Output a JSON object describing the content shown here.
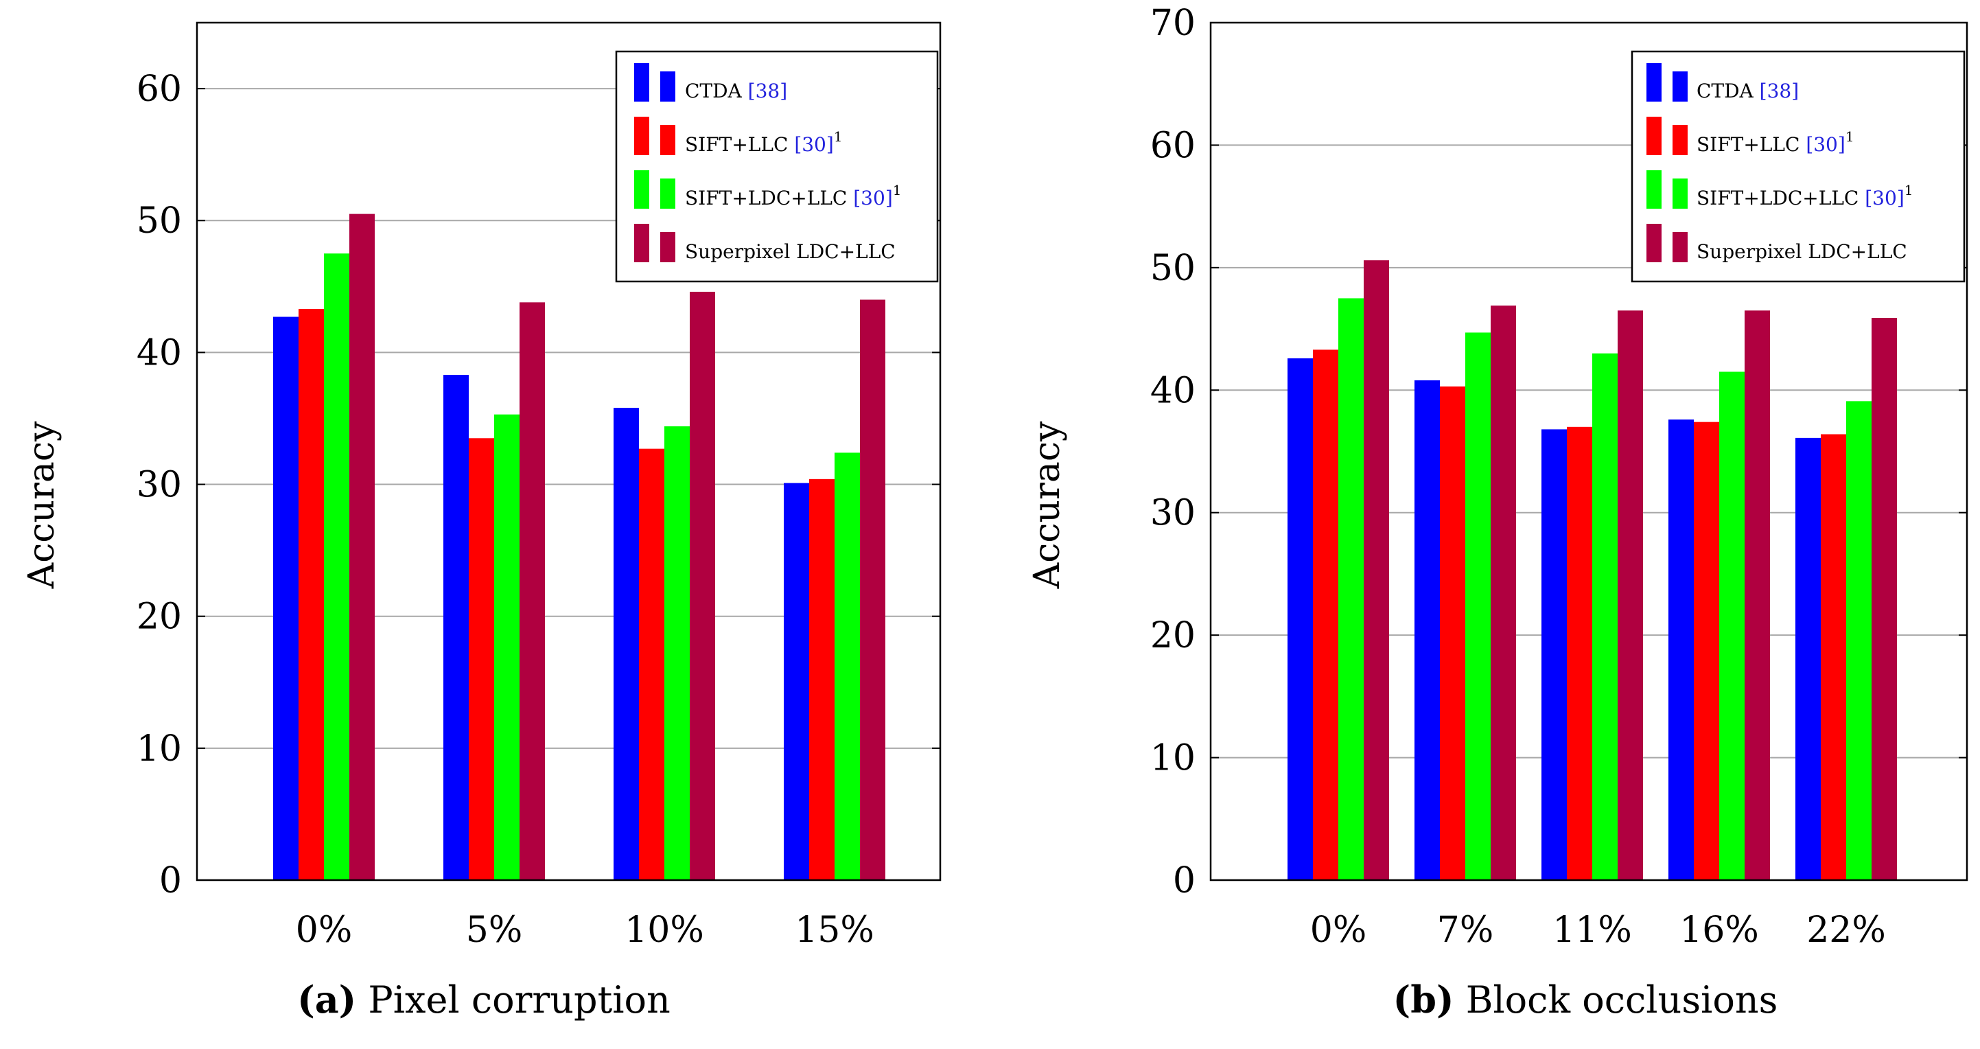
{
  "chart_data": [
    {
      "type": "bar",
      "caption_prefix": "(a)",
      "caption": "Pixel corruption",
      "ylabel": "Accuracy",
      "xlabel": "",
      "ylim": [
        0,
        65
      ],
      "yticks": [
        0,
        10,
        20,
        30,
        40,
        50,
        60
      ],
      "grid": true,
      "legend_position": "top-right",
      "categories": [
        "0%",
        "5%",
        "10%",
        "15%"
      ],
      "series": [
        {
          "name": "CTDA",
          "ref": "[38]",
          "sup": "",
          "color": "#0000ff",
          "values": [
            42.7,
            38.3,
            35.8,
            30.1
          ]
        },
        {
          "name": "SIFT+LLC",
          "ref": "[30]",
          "sup": "1",
          "color": "#ff0000",
          "values": [
            43.3,
            33.5,
            32.7,
            30.4
          ]
        },
        {
          "name": "SIFT+LDC+LLC",
          "ref": "[30]",
          "sup": "1",
          "color": "#00ff00",
          "values": [
            47.5,
            35.3,
            34.4,
            32.4
          ]
        },
        {
          "name": "Superpixel LDC+LLC",
          "ref": "",
          "sup": "",
          "color": "#b00040",
          "values": [
            50.5,
            43.8,
            44.6,
            44.0
          ]
        }
      ]
    },
    {
      "type": "bar",
      "caption_prefix": "(b)",
      "caption": "Block occlusions",
      "ylabel": "Accuracy",
      "xlabel": "",
      "ylim": [
        0,
        70
      ],
      "yticks": [
        0,
        10,
        20,
        30,
        40,
        50,
        60,
        70
      ],
      "grid": true,
      "legend_position": "top-right",
      "categories": [
        "0%",
        "7%",
        "11%",
        "16%",
        "22%"
      ],
      "series": [
        {
          "name": "CTDA",
          "ref": "[38]",
          "sup": "",
          "color": "#0000ff",
          "values": [
            42.6,
            40.8,
            36.8,
            37.6,
            36.1
          ]
        },
        {
          "name": "SIFT+LLC",
          "ref": "[30]",
          "sup": "1",
          "color": "#ff0000",
          "values": [
            43.3,
            40.3,
            37.0,
            37.4,
            36.4
          ]
        },
        {
          "name": "SIFT+LDC+LLC",
          "ref": "[30]",
          "sup": "1",
          "color": "#00ff00",
          "values": [
            47.5,
            44.7,
            43.0,
            41.5,
            39.1
          ]
        },
        {
          "name": "Superpixel LDC+LLC",
          "ref": "",
          "sup": "",
          "color": "#b00040",
          "values": [
            50.6,
            46.9,
            46.5,
            46.5,
            45.9
          ]
        }
      ]
    }
  ]
}
